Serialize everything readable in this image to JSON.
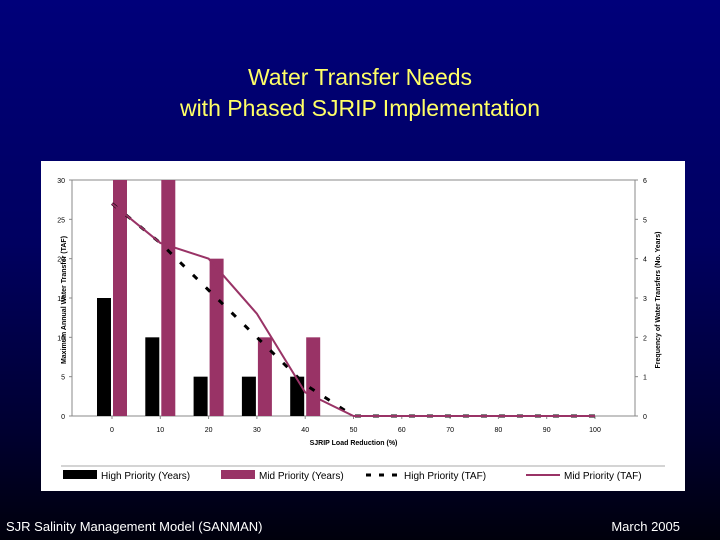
{
  "slide": {
    "title_line1": "Water Transfer Needs",
    "title_line2": "with Phased SJRIP Implementation",
    "footer_left": "SJR Salinity Management Model (SANMAN)",
    "footer_right": "March 2005",
    "colors": {
      "background": "#000070",
      "title": "#ffff66",
      "footer": "#ffffff",
      "high_priority": "#000000",
      "mid_priority": "#993366"
    }
  },
  "chart_data": {
    "type": "bar",
    "title": "",
    "xlabel": "SJRIP Load Reduction (%)",
    "ylabel": "Maximum Annual Water Transfer (TAF)",
    "y2label": "Frequency of Water Transfers (No. Years)",
    "x": [
      0,
      10,
      20,
      30,
      40,
      50,
      60,
      70,
      80,
      90,
      100
    ],
    "x_ticks": [
      "0",
      "10",
      "20",
      "30",
      "40",
      "50",
      "60",
      "70",
      "80",
      "90",
      "100"
    ],
    "ylim": [
      0,
      30
    ],
    "y_ticks": [
      "0",
      "5",
      "10",
      "15",
      "20",
      "25",
      "30"
    ],
    "y2lim": [
      0,
      6
    ],
    "y2_ticks": [
      "0",
      "1",
      "2",
      "3",
      "4",
      "5",
      "6"
    ],
    "grid": false,
    "legend_position": "bottom",
    "series": [
      {
        "name": "High Priority (Years)",
        "kind": "bar",
        "axis": "right",
        "color": "#000000",
        "values": [
          3,
          2,
          1,
          1,
          1,
          0,
          0,
          0,
          0,
          0,
          0
        ]
      },
      {
        "name": "Mid Priority (Years)",
        "kind": "bar",
        "axis": "right",
        "color": "#993366",
        "values": [
          6,
          6,
          4,
          2,
          2,
          0,
          0,
          0,
          0,
          0,
          0
        ]
      },
      {
        "name": "High Priority (TAF)",
        "kind": "line",
        "style": "dashed",
        "axis": "left",
        "color": "#000000",
        "values": [
          27,
          22,
          16,
          10,
          4,
          0,
          0,
          0,
          0,
          0,
          0
        ]
      },
      {
        "name": "Mid Priority (TAF)",
        "kind": "line",
        "style": "solid",
        "axis": "left",
        "color": "#993366",
        "values": [
          27,
          22,
          20,
          13,
          3,
          0,
          0,
          0,
          0,
          0,
          0
        ]
      }
    ]
  }
}
